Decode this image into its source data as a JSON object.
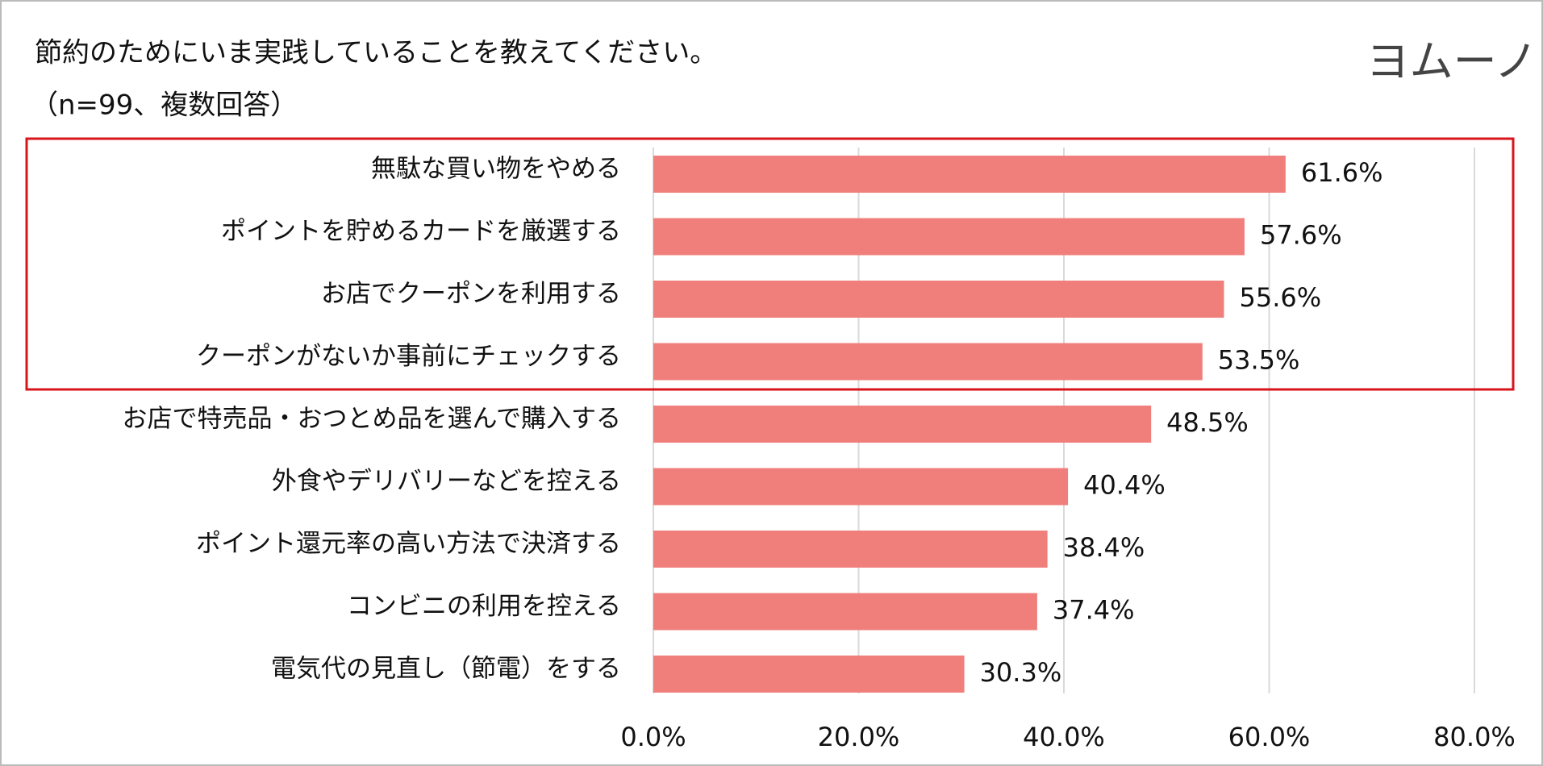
{
  "chart_data": {
    "type": "bar",
    "orientation": "horizontal",
    "title": "節約のためにいま実践していることを教えてください。",
    "subtitle": "（n=99、複数回答）",
    "logo": "ヨムーノ",
    "categories": [
      "無駄な買い物をやめる",
      "ポイントを貯めるカードを厳選する",
      "お店でクーポンを利用する",
      "クーポンがないか事前にチェックする",
      "お店で特売品・おつとめ品を選んで購入する",
      "外食やデリバリーなどを控える",
      "ポイント還元率の高い方法で決済する",
      "コンビニの利用を控える",
      "電気代の見直し（節電）をする"
    ],
    "values": [
      61.6,
      57.6,
      55.6,
      53.5,
      48.5,
      40.4,
      38.4,
      37.4,
      30.3
    ],
    "value_labels": [
      "61.6%",
      "57.6%",
      "55.6%",
      "53.5%",
      "48.5%",
      "40.4%",
      "38.4%",
      "37.4%",
      "30.3%"
    ],
    "color": "#f07f7b",
    "xlim": [
      0,
      80
    ],
    "xticks": [
      {
        "value": 0,
        "label": "0.0%"
      },
      {
        "value": 20,
        "label": "20.0%"
      },
      {
        "value": 40,
        "label": "40.0%"
      },
      {
        "value": 60,
        "label": "60.0%"
      },
      {
        "value": 80,
        "label": "80.0%"
      }
    ],
    "grid": true
  }
}
